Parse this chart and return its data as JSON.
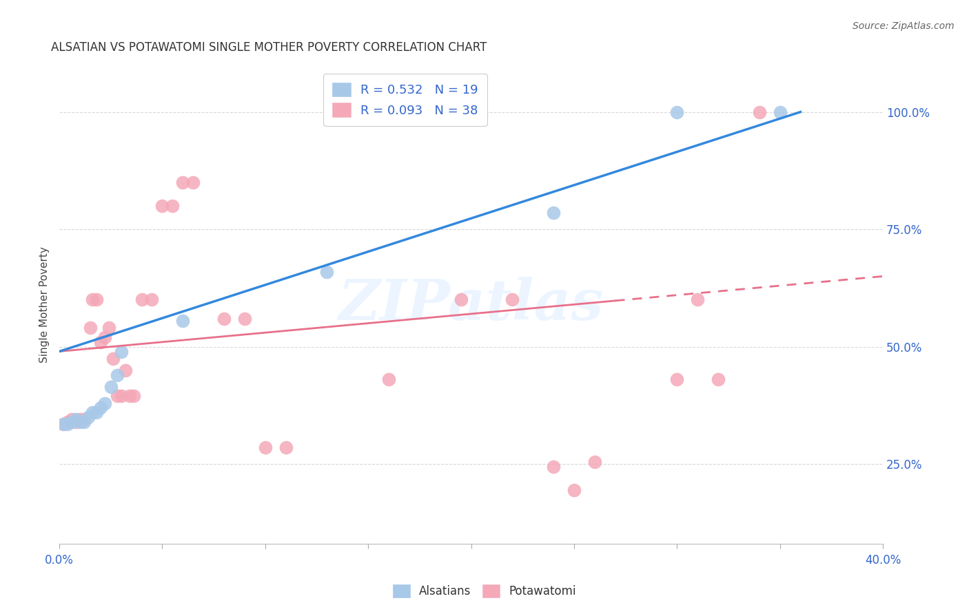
{
  "title": "ALSATIAN VS POTAWATOMI SINGLE MOTHER POVERTY CORRELATION CHART",
  "source": "Source: ZipAtlas.com",
  "ylabel": "Single Mother Poverty",
  "ytick_labels": [
    "25.0%",
    "50.0%",
    "75.0%",
    "100.0%"
  ],
  "ytick_values": [
    0.25,
    0.5,
    0.75,
    1.0
  ],
  "xmin": 0.0,
  "xmax": 0.4,
  "ymin": 0.08,
  "ymax": 1.1,
  "alsatian_R": 0.532,
  "alsatian_N": 19,
  "potawatomi_R": 0.093,
  "potawatomi_N": 38,
  "alsatian_color": "#a8c8e8",
  "potawatomi_color": "#f4a8b8",
  "trendline_alsatian_color": "#3388dd",
  "trendline_potawatomi_color": "#e8708a",
  "alsatian_x": [
    0.002,
    0.004,
    0.006,
    0.008,
    0.01,
    0.012,
    0.014,
    0.016,
    0.018,
    0.02,
    0.022,
    0.025,
    0.028,
    0.03,
    0.06,
    0.13,
    0.24,
    0.3,
    0.35
  ],
  "alsatian_y": [
    0.335,
    0.335,
    0.34,
    0.345,
    0.34,
    0.34,
    0.35,
    0.36,
    0.36,
    0.37,
    0.38,
    0.415,
    0.44,
    0.49,
    0.555,
    0.66,
    0.785,
    1.0,
    1.0
  ],
  "potawatomi_x": [
    0.002,
    0.004,
    0.006,
    0.008,
    0.01,
    0.012,
    0.015,
    0.016,
    0.018,
    0.02,
    0.022,
    0.024,
    0.026,
    0.028,
    0.03,
    0.032,
    0.034,
    0.036,
    0.04,
    0.045,
    0.05,
    0.055,
    0.06,
    0.065,
    0.08,
    0.09,
    0.1,
    0.11,
    0.16,
    0.195,
    0.22,
    0.24,
    0.25,
    0.26,
    0.3,
    0.31,
    0.32,
    0.34
  ],
  "potawatomi_y": [
    0.335,
    0.34,
    0.345,
    0.34,
    0.345,
    0.345,
    0.54,
    0.6,
    0.6,
    0.51,
    0.52,
    0.54,
    0.475,
    0.395,
    0.395,
    0.45,
    0.395,
    0.395,
    0.6,
    0.6,
    0.8,
    0.8,
    0.85,
    0.85,
    0.56,
    0.56,
    0.285,
    0.285,
    0.43,
    0.6,
    0.6,
    0.245,
    0.195,
    0.255,
    0.43,
    0.6,
    0.43,
    1.0
  ],
  "alsatian_trend_x0": 0.0,
  "alsatian_trend_y0": 0.49,
  "alsatian_trend_x1": 0.36,
  "alsatian_trend_y1": 1.0,
  "potawatomi_trend_x0": 0.0,
  "potawatomi_trend_y0": 0.49,
  "potawatomi_trend_x1": 0.4,
  "potawatomi_trend_y1": 0.65,
  "legend_box_color": "#ffffff",
  "watermark_text": "ZIPatlas",
  "background_color": "#ffffff",
  "grid_color": "#d8d8d8"
}
